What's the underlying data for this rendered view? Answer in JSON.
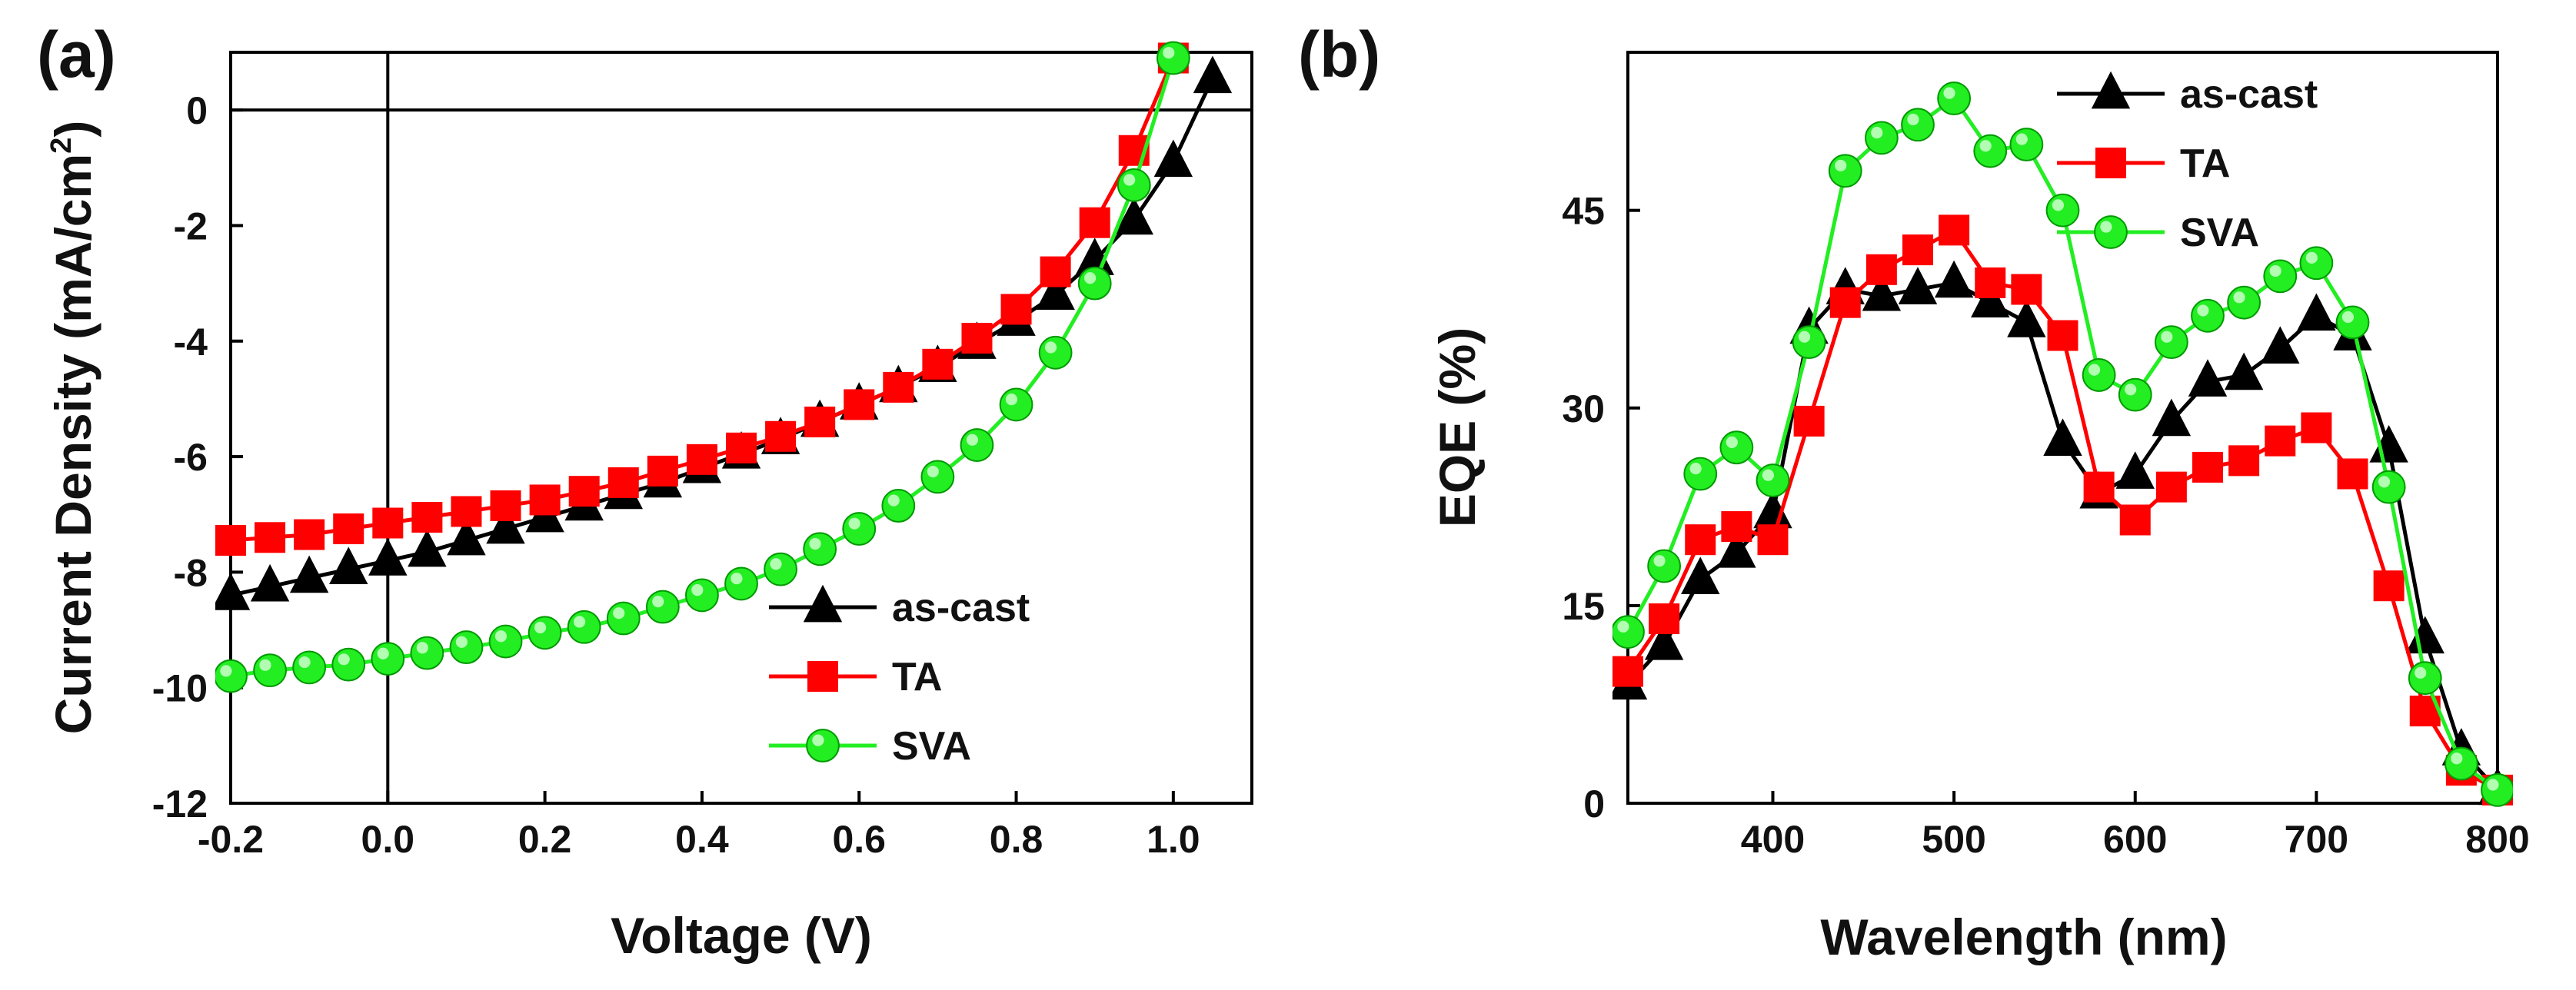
{
  "colors": {
    "as_cast": "#000000",
    "ta": "#ff0000",
    "sva": "#22ee22",
    "sva_edge": "#009900"
  },
  "chart_data": [
    {
      "panel_label": "(a)",
      "type": "line",
      "xlabel": "Voltage (V)",
      "ylabel": "Current Density (mA/cm",
      "ylabel_sup": "2",
      "ylabel_close": ")",
      "xlim": [
        -0.2,
        1.1
      ],
      "ylim": [
        -12,
        1
      ],
      "xticks": [
        -0.2,
        0.0,
        0.2,
        0.4,
        0.6,
        0.8,
        1.0
      ],
      "xtick_labels": [
        "-0.2",
        "0.0",
        "0.2",
        "0.4",
        "0.6",
        "0.8",
        "1.0"
      ],
      "yticks": [
        0,
        -2,
        -4,
        -6,
        -8,
        -10,
        -12
      ],
      "ytick_labels": [
        "0",
        "-2",
        "-4",
        "-6",
        "-8",
        "-10",
        "-12"
      ],
      "ref_lines": {
        "x": 0,
        "y": 0
      },
      "legend_position": "bottom-right",
      "series": [
        {
          "name": "as-cast",
          "marker": "triangle",
          "color": "#000000",
          "x": [
            -0.2,
            -0.15,
            -0.1,
            -0.05,
            0,
            0.05,
            0.1,
            0.15,
            0.2,
            0.25,
            0.3,
            0.35,
            0.4,
            0.45,
            0.5,
            0.55,
            0.6,
            0.65,
            0.7,
            0.75,
            0.8,
            0.85,
            0.9,
            0.95,
            1.0,
            1.05
          ],
          "y": [
            -8.4,
            -8.25,
            -8.1,
            -7.95,
            -7.8,
            -7.65,
            -7.45,
            -7.25,
            -7.05,
            -6.85,
            -6.65,
            -6.45,
            -6.2,
            -5.95,
            -5.7,
            -5.4,
            -5.1,
            -4.8,
            -4.45,
            -4.05,
            -3.65,
            -3.2,
            -2.6,
            -1.9,
            -0.9,
            0.55
          ]
        },
        {
          "name": "TA",
          "marker": "square",
          "color": "#ff0000",
          "x": [
            -0.2,
            -0.15,
            -0.1,
            -0.05,
            0,
            0.05,
            0.1,
            0.15,
            0.2,
            0.25,
            0.3,
            0.35,
            0.4,
            0.45,
            0.5,
            0.55,
            0.6,
            0.65,
            0.7,
            0.75,
            0.8,
            0.85,
            0.9,
            0.95,
            1.0
          ],
          "y": [
            -7.45,
            -7.4,
            -7.35,
            -7.25,
            -7.15,
            -7.05,
            -6.95,
            -6.85,
            -6.75,
            -6.6,
            -6.45,
            -6.25,
            -6.05,
            -5.85,
            -5.65,
            -5.4,
            -5.1,
            -4.8,
            -4.4,
            -3.95,
            -3.45,
            -2.8,
            -1.95,
            -0.7,
            0.9
          ]
        },
        {
          "name": "SVA",
          "marker": "circle",
          "color": "#22ee22",
          "x": [
            -0.2,
            -0.15,
            -0.1,
            -0.05,
            0,
            0.05,
            0.1,
            0.15,
            0.2,
            0.25,
            0.3,
            0.35,
            0.4,
            0.45,
            0.5,
            0.55,
            0.6,
            0.65,
            0.7,
            0.75,
            0.8,
            0.85,
            0.9,
            0.95,
            1.0
          ],
          "y": [
            -9.8,
            -9.7,
            -9.65,
            -9.6,
            -9.5,
            -9.4,
            -9.3,
            -9.2,
            -9.05,
            -8.95,
            -8.8,
            -8.6,
            -8.4,
            -8.2,
            -7.95,
            -7.6,
            -7.25,
            -6.85,
            -6.35,
            -5.8,
            -5.1,
            -4.2,
            -3.0,
            -1.3,
            0.9
          ]
        }
      ]
    },
    {
      "panel_label": "(b)",
      "type": "line",
      "xlabel": "Wavelength (nm)",
      "ylabel": "EQE (%)",
      "xlim": [
        320,
        800
      ],
      "ylim": [
        0,
        57
      ],
      "xticks": [
        400,
        500,
        600,
        700,
        800
      ],
      "xtick_labels": [
        "400",
        "500",
        "600",
        "700",
        "800"
      ],
      "yticks": [
        0,
        15,
        30,
        45
      ],
      "ytick_labels": [
        "0",
        "15",
        "30",
        "45"
      ],
      "legend_position": "top-right",
      "series": [
        {
          "name": "as-cast",
          "marker": "triangle",
          "color": "#000000",
          "x": [
            320,
            340,
            360,
            380,
            400,
            420,
            440,
            460,
            480,
            500,
            520,
            540,
            560,
            580,
            600,
            620,
            640,
            660,
            680,
            700,
            720,
            740,
            760,
            780,
            800
          ],
          "y": [
            9,
            12,
            17,
            19,
            22,
            36,
            39,
            38.5,
            39,
            39.5,
            38,
            36.5,
            27.5,
            23.5,
            25,
            29,
            32,
            32.5,
            34.5,
            37,
            35.5,
            27,
            12.5,
            4,
            1
          ]
        },
        {
          "name": "TA",
          "marker": "square",
          "color": "#ff0000",
          "x": [
            320,
            340,
            360,
            380,
            400,
            420,
            440,
            460,
            480,
            500,
            520,
            540,
            560,
            580,
            600,
            620,
            640,
            660,
            680,
            700,
            720,
            740,
            760,
            780,
            800
          ],
          "y": [
            10,
            14,
            20,
            21,
            20,
            29,
            38,
            40.5,
            42,
            43.5,
            39.5,
            39,
            35.5,
            24,
            21.5,
            24,
            25.5,
            26,
            27.5,
            28.5,
            25,
            16.5,
            7,
            2.5,
            1
          ]
        },
        {
          "name": "SVA",
          "marker": "circle",
          "color": "#22ee22",
          "x": [
            320,
            340,
            360,
            380,
            400,
            420,
            440,
            460,
            480,
            500,
            520,
            540,
            560,
            580,
            600,
            620,
            640,
            660,
            680,
            700,
            720,
            740,
            760,
            780,
            800
          ],
          "y": [
            13,
            18,
            25,
            27,
            24.5,
            35,
            48,
            50.5,
            51.5,
            53.5,
            49.5,
            50,
            45,
            32.5,
            31,
            35,
            37,
            38,
            40,
            41,
            36.5,
            24,
            9.5,
            3,
            1
          ]
        }
      ]
    }
  ]
}
